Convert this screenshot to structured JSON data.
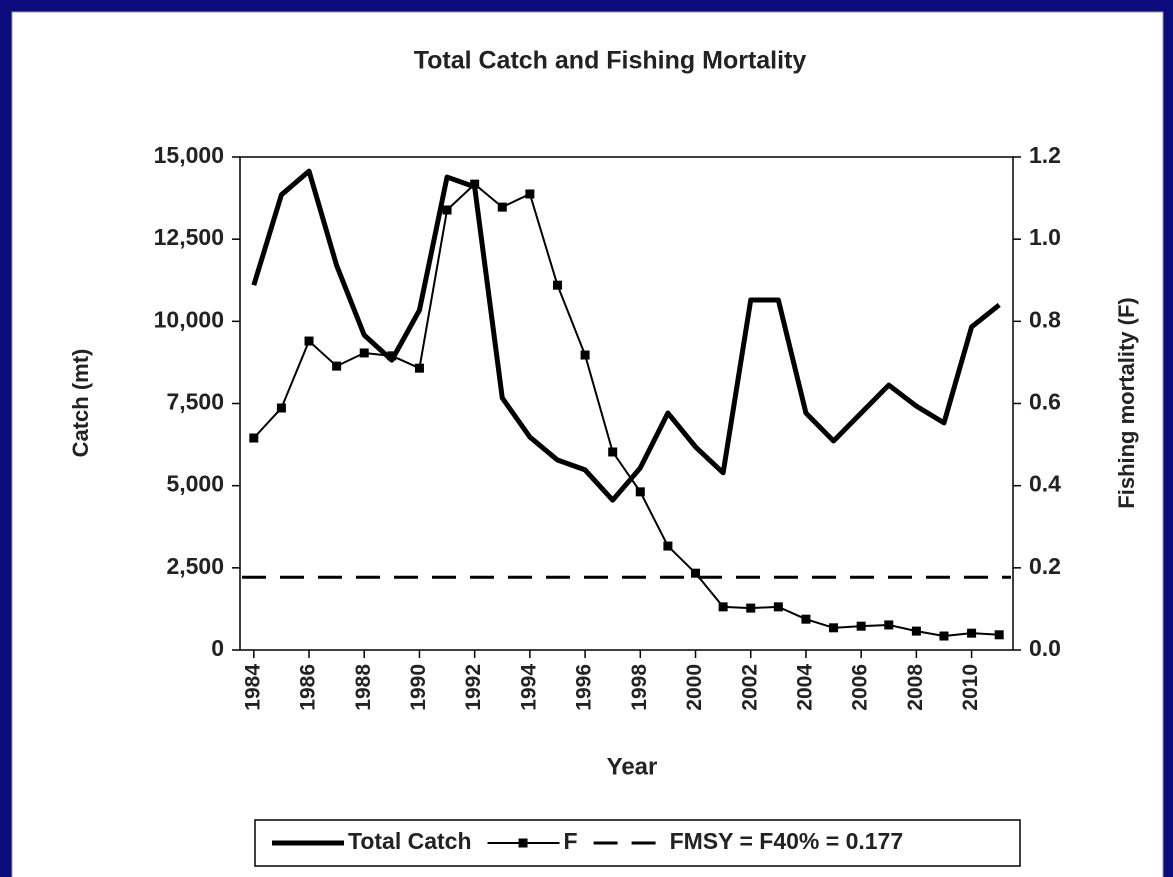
{
  "chart_data": {
    "type": "line",
    "title": "Total Catch and Fishing Mortality",
    "x_label": "Year",
    "y_label": "Catch (mt)",
    "y2_label": "Fishing mortality (F)",
    "x": [
      1984,
      1985,
      1986,
      1987,
      1988,
      1989,
      1990,
      1991,
      1992,
      1993,
      1994,
      1995,
      1996,
      1997,
      1998,
      1999,
      2000,
      2001,
      2002,
      2003,
      2004,
      2005,
      2006,
      2007,
      2008,
      2009,
      2010,
      2011
    ],
    "series": [
      {
        "name": "Total Catch",
        "color": "#000000",
        "values": [
          11100,
          13850,
          14570,
          11700,
          9580,
          8820,
          10340,
          14390,
          14090,
          7670,
          6480,
          5780,
          5480,
          4560,
          5540,
          7210,
          6180,
          5390,
          10650,
          10650,
          7210,
          6360,
          7210,
          8060,
          7420,
          6910,
          9830,
          10500
        ]
      },
      {
        "name": "F",
        "color": "#000000",
        "axis": "y2",
        "marker": "square",
        "values": [
          0.516,
          0.589,
          0.752,
          0.691,
          0.723,
          0.716,
          0.686,
          1.071,
          1.134,
          1.078,
          1.11,
          0.888,
          0.718,
          0.482,
          0.385,
          0.253,
          0.187,
          0.105,
          0.102,
          0.105,
          0.075,
          0.054,
          0.058,
          0.061,
          0.046,
          0.034,
          0.041,
          0.037
        ]
      }
    ],
    "reference_lines": [
      {
        "name": "FMSY = F40% = 0.177",
        "value": 0.177,
        "axis": "y2",
        "color": "#000000",
        "dashed": true
      }
    ],
    "xlim": [
      1983.5,
      2011.5
    ],
    "xticks": [
      1984,
      1986,
      1988,
      1990,
      1992,
      1994,
      1996,
      1998,
      2000,
      2002,
      2004,
      2006,
      2008,
      2010
    ],
    "ylim": [
      0,
      15000
    ],
    "yticks": [
      0,
      {
        "value": 2500,
        "label": "2,500"
      },
      {
        "value": 5000,
        "label": "5,000"
      },
      {
        "value": 7500,
        "label": "7,500"
      },
      {
        "value": 10000,
        "label": "10,000"
      },
      {
        "value": 12500,
        "label": "12,500"
      },
      {
        "value": 15000,
        "label": "15,000"
      }
    ],
    "y2lim": [
      0,
      1.2
    ],
    "y2ticks": [
      {
        "value": 0,
        "label": "0.0"
      },
      0.2,
      0.4,
      0.6,
      0.8,
      {
        "value": 1,
        "label": "1.0"
      },
      1.2
    ],
    "legend": "bottom"
  }
}
